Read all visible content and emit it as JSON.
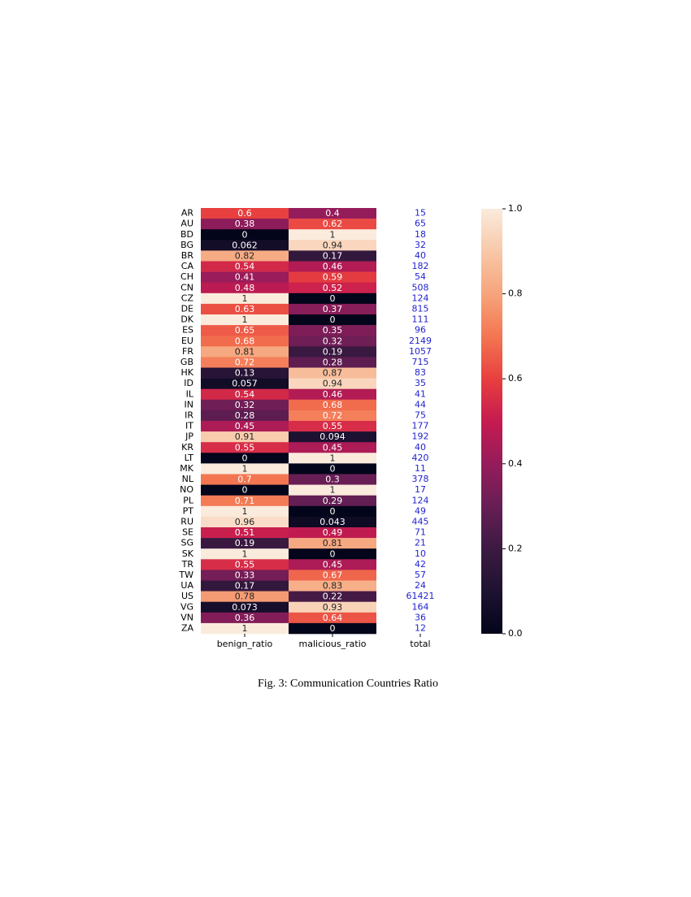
{
  "chart_data": {
    "type": "heatmap",
    "categories": [
      "AR",
      "AU",
      "BD",
      "BG",
      "BR",
      "CA",
      "CH",
      "CN",
      "CZ",
      "DE",
      "DK",
      "ES",
      "EU",
      "FR",
      "GB",
      "HK",
      "ID",
      "IL",
      "IN",
      "IR",
      "IT",
      "JP",
      "KR",
      "LT",
      "MK",
      "NL",
      "NO",
      "PL",
      "PT",
      "RU",
      "SE",
      "SG",
      "SK",
      "TR",
      "TW",
      "UA",
      "US",
      "VG",
      "VN",
      "ZA"
    ],
    "series": [
      {
        "name": "benign_ratio",
        "values": [
          0.6,
          0.38,
          0,
          0.062,
          0.82,
          0.54,
          0.41,
          0.48,
          1,
          0.63,
          1,
          0.65,
          0.68,
          0.81,
          0.72,
          0.13,
          0.057,
          0.54,
          0.32,
          0.28,
          0.45,
          0.91,
          0.55,
          0,
          1,
          0.7,
          0,
          0.71,
          1,
          0.96,
          0.51,
          0.19,
          1,
          0.55,
          0.33,
          0.17,
          0.78,
          0.073,
          0.36,
          1
        ]
      },
      {
        "name": "malicious_ratio",
        "values": [
          0.4,
          0.62,
          1,
          0.94,
          0.17,
          0.46,
          0.59,
          0.52,
          0,
          0.37,
          0,
          0.35,
          0.32,
          0.19,
          0.28,
          0.87,
          0.94,
          0.46,
          0.68,
          0.72,
          0.55,
          0.094,
          0.45,
          1,
          0,
          0.3,
          1,
          0.29,
          0,
          0.043,
          0.49,
          0.81,
          0,
          0.45,
          0.67,
          0.83,
          0.22,
          0.93,
          0.64,
          0
        ]
      },
      {
        "name": "total",
        "color": "#1f1fd0",
        "values": [
          15,
          65,
          18,
          32,
          40,
          182,
          54,
          508,
          124,
          815,
          111,
          96,
          2149,
          1057,
          715,
          83,
          35,
          41,
          44,
          75,
          177,
          192,
          40,
          420,
          11,
          378,
          17,
          124,
          49,
          445,
          71,
          21,
          10,
          42,
          57,
          24,
          61421,
          164,
          36,
          12
        ]
      }
    ],
    "colormap": [
      "#03051a",
      "#1e1231",
      "#3c1a42",
      "#671e55",
      "#951c5b",
      "#c51b50",
      "#e83f3f",
      "#f37651",
      "#f6a47c",
      "#f8c8a8",
      "#faebdd"
    ],
    "clim": [
      0,
      1
    ],
    "cticks": [
      {
        "value": 0,
        "label": "0.0"
      },
      0.2,
      0.4,
      0.6,
      0.8,
      {
        "value": 1,
        "label": "1.0"
      }
    ],
    "caption": "Fig. 3: Communication Countries Ratio"
  }
}
